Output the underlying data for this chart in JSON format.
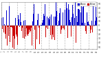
{
  "n_days": 365,
  "seed": 42,
  "background_color": "#ffffff",
  "bar_color_pos": "#0000cc",
  "bar_color_neg": "#cc0000",
  "legend_label_pos": "Above",
  "legend_label_neg": "Below",
  "ylim_low": -55,
  "ylim_high": 55,
  "yticks": [
    -50,
    -40,
    -30,
    -20,
    -10,
    0,
    10,
    20,
    30,
    40,
    50
  ],
  "ytick_labels": [
    "50",
    "40",
    "30",
    "20",
    "10",
    "0",
    "10",
    "20",
    "30",
    "40",
    "50"
  ],
  "grid_color": "#aaaaaa",
  "grid_style": "--",
  "num_grid_lines": 13,
  "seasonal_amplitude": 15,
  "noise_scale": 28
}
